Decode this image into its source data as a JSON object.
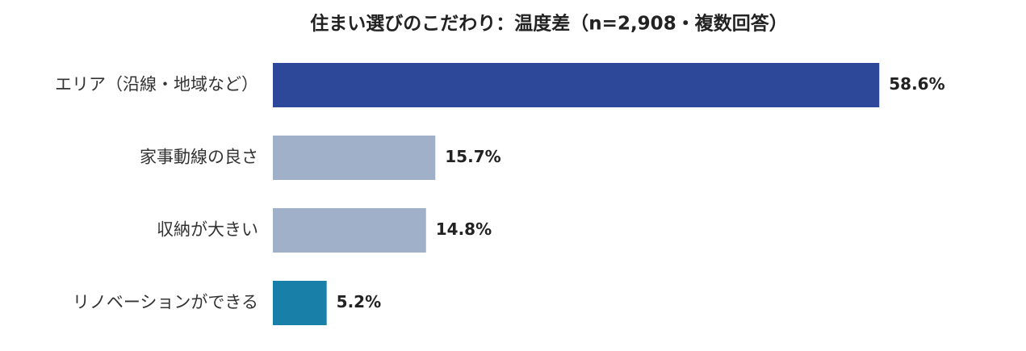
{
  "chart_data": {
    "type": "bar",
    "orientation": "horizontal",
    "title": "住まい選びのこだわり：温度差（n=2,908・複数回答）",
    "categories": [
      "エリア（沿線・地域など）",
      "家事動線の良さ",
      "収納が大きい",
      "リノベーションができる"
    ],
    "values": [
      58.6,
      15.7,
      14.8,
      5.2
    ],
    "value_labels": [
      "58.6%",
      "15.7%",
      "14.8%",
      "5.2%"
    ],
    "colors": [
      "#2e4899",
      "#a0b0c9",
      "#a0b0c9",
      "#177fa8"
    ]
  }
}
